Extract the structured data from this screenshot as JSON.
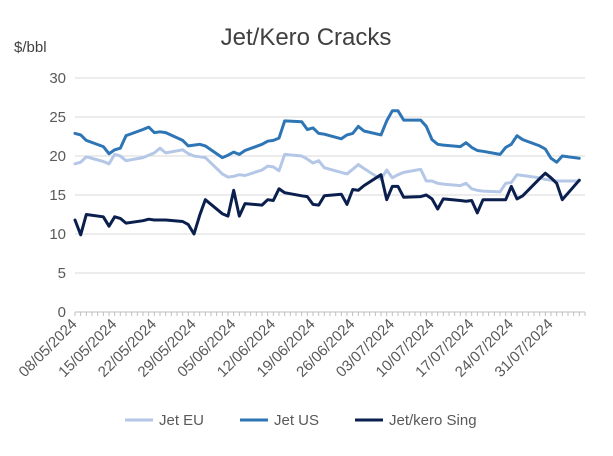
{
  "chart_data": {
    "type": "line",
    "title": "Jet/Kero Cracks",
    "ylabel": "$/bbl",
    "xlabel": "",
    "ylim": [
      0,
      30
    ],
    "yticks": [
      0,
      5,
      10,
      15,
      20,
      25,
      30
    ],
    "grid": true,
    "legend": "bottom",
    "xlim": [
      "2024-05-08",
      "2024-08-06"
    ],
    "x_tick_labels": [
      "08/05/2024",
      "15/05/2024",
      "22/05/2024",
      "29/05/2024",
      "05/06/2024",
      "12/06/2024",
      "19/06/2024",
      "26/06/2024",
      "03/07/2024",
      "10/07/2024",
      "17/07/2024",
      "24/07/2024",
      "31/07/2024"
    ],
    "x_tick_dates": [
      "2024-05-08",
      "2024-05-15",
      "2024-05-22",
      "2024-05-29",
      "2024-06-05",
      "2024-06-12",
      "2024-06-19",
      "2024-06-26",
      "2024-07-03",
      "2024-07-10",
      "2024-07-17",
      "2024-07-24",
      "2024-07-31"
    ],
    "series": [
      {
        "name": "Jet EU",
        "color": "#b4c7e7",
        "points": [
          [
            "2024-05-08",
            19.0
          ],
          [
            "2024-05-09",
            19.2
          ],
          [
            "2024-05-10",
            19.9
          ],
          [
            "2024-05-13",
            19.3
          ],
          [
            "2024-05-14",
            19.0
          ],
          [
            "2024-05-15",
            20.2
          ],
          [
            "2024-05-16",
            20.0
          ],
          [
            "2024-05-17",
            19.4
          ],
          [
            "2024-05-20",
            19.8
          ],
          [
            "2024-05-21",
            20.1
          ],
          [
            "2024-05-22",
            20.4
          ],
          [
            "2024-05-23",
            21.0
          ],
          [
            "2024-05-24",
            20.4
          ],
          [
            "2024-05-27",
            20.8
          ],
          [
            "2024-05-28",
            20.3
          ],
          [
            "2024-05-29",
            20.0
          ],
          [
            "2024-05-30",
            19.9
          ],
          [
            "2024-05-31",
            19.8
          ],
          [
            "2024-06-03",
            17.7
          ],
          [
            "2024-06-04",
            17.3
          ],
          [
            "2024-06-05",
            17.4
          ],
          [
            "2024-06-06",
            17.6
          ],
          [
            "2024-06-07",
            17.5
          ],
          [
            "2024-06-10",
            18.2
          ],
          [
            "2024-06-11",
            18.7
          ],
          [
            "2024-06-12",
            18.6
          ],
          [
            "2024-06-13",
            18.1
          ],
          [
            "2024-06-14",
            20.2
          ],
          [
            "2024-06-17",
            20.0
          ],
          [
            "2024-06-18",
            19.6
          ],
          [
            "2024-06-19",
            19.1
          ],
          [
            "2024-06-20",
            19.4
          ],
          [
            "2024-06-21",
            18.5
          ],
          [
            "2024-06-24",
            17.9
          ],
          [
            "2024-06-25",
            17.7
          ],
          [
            "2024-06-26",
            18.3
          ],
          [
            "2024-06-27",
            18.9
          ],
          [
            "2024-06-28",
            18.4
          ],
          [
            "2024-07-01",
            17.0
          ],
          [
            "2024-07-02",
            18.2
          ],
          [
            "2024-07-03",
            17.2
          ],
          [
            "2024-07-04",
            17.6
          ],
          [
            "2024-07-05",
            17.9
          ],
          [
            "2024-07-08",
            18.3
          ],
          [
            "2024-07-09",
            16.8
          ],
          [
            "2024-07-10",
            16.8
          ],
          [
            "2024-07-11",
            16.5
          ],
          [
            "2024-07-12",
            16.4
          ],
          [
            "2024-07-15",
            16.2
          ],
          [
            "2024-07-16",
            16.5
          ],
          [
            "2024-07-17",
            15.8
          ],
          [
            "2024-07-18",
            15.6
          ],
          [
            "2024-07-19",
            15.5
          ],
          [
            "2024-07-22",
            15.4
          ],
          [
            "2024-07-23",
            16.5
          ],
          [
            "2024-07-24",
            16.6
          ],
          [
            "2024-07-25",
            17.6
          ],
          [
            "2024-07-26",
            17.5
          ],
          [
            "2024-07-29",
            17.2
          ],
          [
            "2024-07-30",
            17.0
          ],
          [
            "2024-07-31",
            16.9
          ],
          [
            "2024-08-01",
            16.8
          ],
          [
            "2024-08-02",
            16.8
          ],
          [
            "2024-08-05",
            16.8
          ]
        ]
      },
      {
        "name": "Jet US",
        "color": "#2e75b6",
        "points": [
          [
            "2024-05-08",
            22.9
          ],
          [
            "2024-05-09",
            22.7
          ],
          [
            "2024-05-10",
            22.0
          ],
          [
            "2024-05-13",
            21.2
          ],
          [
            "2024-05-14",
            20.3
          ],
          [
            "2024-05-15",
            20.8
          ],
          [
            "2024-05-16",
            21.0
          ],
          [
            "2024-05-17",
            22.6
          ],
          [
            "2024-05-20",
            23.4
          ],
          [
            "2024-05-21",
            23.7
          ],
          [
            "2024-05-22",
            23.0
          ],
          [
            "2024-05-23",
            23.1
          ],
          [
            "2024-05-24",
            23.0
          ],
          [
            "2024-05-27",
            22.0
          ],
          [
            "2024-05-28",
            21.3
          ],
          [
            "2024-05-29",
            21.4
          ],
          [
            "2024-05-30",
            21.5
          ],
          [
            "2024-05-31",
            21.3
          ],
          [
            "2024-06-03",
            19.8
          ],
          [
            "2024-06-04",
            20.1
          ],
          [
            "2024-06-05",
            20.5
          ],
          [
            "2024-06-06",
            20.2
          ],
          [
            "2024-06-07",
            20.7
          ],
          [
            "2024-06-10",
            21.5
          ],
          [
            "2024-06-11",
            21.9
          ],
          [
            "2024-06-12",
            22.0
          ],
          [
            "2024-06-13",
            22.3
          ],
          [
            "2024-06-14",
            24.5
          ],
          [
            "2024-06-17",
            24.4
          ],
          [
            "2024-06-18",
            23.4
          ],
          [
            "2024-06-19",
            23.6
          ],
          [
            "2024-06-20",
            22.9
          ],
          [
            "2024-06-21",
            22.8
          ],
          [
            "2024-06-24",
            22.2
          ],
          [
            "2024-06-25",
            22.7
          ],
          [
            "2024-06-26",
            22.9
          ],
          [
            "2024-06-27",
            23.8
          ],
          [
            "2024-06-28",
            23.2
          ],
          [
            "2024-07-01",
            22.7
          ],
          [
            "2024-07-02",
            24.5
          ],
          [
            "2024-07-03",
            25.8
          ],
          [
            "2024-07-04",
            25.8
          ],
          [
            "2024-07-05",
            24.6
          ],
          [
            "2024-07-08",
            24.6
          ],
          [
            "2024-07-09",
            23.8
          ],
          [
            "2024-07-10",
            22.1
          ],
          [
            "2024-07-11",
            21.5
          ],
          [
            "2024-07-12",
            21.4
          ],
          [
            "2024-07-15",
            21.2
          ],
          [
            "2024-07-16",
            21.7
          ],
          [
            "2024-07-17",
            21.1
          ],
          [
            "2024-07-18",
            20.7
          ],
          [
            "2024-07-19",
            20.6
          ],
          [
            "2024-07-22",
            20.2
          ],
          [
            "2024-07-23",
            21.1
          ],
          [
            "2024-07-24",
            21.5
          ],
          [
            "2024-07-25",
            22.6
          ],
          [
            "2024-07-26",
            22.1
          ],
          [
            "2024-07-29",
            21.3
          ],
          [
            "2024-07-30",
            20.9
          ],
          [
            "2024-07-31",
            19.7
          ],
          [
            "2024-08-01",
            19.2
          ],
          [
            "2024-08-02",
            20.0
          ],
          [
            "2024-08-05",
            19.7
          ]
        ]
      },
      {
        "name": "Jet/kero Sing",
        "color": "#0b1f4e",
        "points": [
          [
            "2024-05-08",
            11.8
          ],
          [
            "2024-05-09",
            9.9
          ],
          [
            "2024-05-10",
            12.5
          ],
          [
            "2024-05-13",
            12.2
          ],
          [
            "2024-05-14",
            11.0
          ],
          [
            "2024-05-15",
            12.2
          ],
          [
            "2024-05-16",
            12.0
          ],
          [
            "2024-05-17",
            11.4
          ],
          [
            "2024-05-20",
            11.7
          ],
          [
            "2024-05-21",
            11.9
          ],
          [
            "2024-05-22",
            11.8
          ],
          [
            "2024-05-23",
            11.8
          ],
          [
            "2024-05-24",
            11.8
          ],
          [
            "2024-05-27",
            11.6
          ],
          [
            "2024-05-28",
            11.2
          ],
          [
            "2024-05-29",
            10.0
          ],
          [
            "2024-05-30",
            12.4
          ],
          [
            "2024-05-31",
            14.4
          ],
          [
            "2024-06-03",
            12.6
          ],
          [
            "2024-06-04",
            12.3
          ],
          [
            "2024-06-05",
            15.6
          ],
          [
            "2024-06-06",
            12.3
          ],
          [
            "2024-06-07",
            13.9
          ],
          [
            "2024-06-10",
            13.7
          ],
          [
            "2024-06-11",
            14.4
          ],
          [
            "2024-06-12",
            14.3
          ],
          [
            "2024-06-13",
            15.8
          ],
          [
            "2024-06-14",
            15.3
          ],
          [
            "2024-06-17",
            14.9
          ],
          [
            "2024-06-18",
            14.8
          ],
          [
            "2024-06-19",
            13.8
          ],
          [
            "2024-06-20",
            13.7
          ],
          [
            "2024-06-21",
            14.9
          ],
          [
            "2024-06-24",
            15.1
          ],
          [
            "2024-06-25",
            13.8
          ],
          [
            "2024-06-26",
            15.7
          ],
          [
            "2024-06-27",
            15.6
          ],
          [
            "2024-06-28",
            16.2
          ],
          [
            "2024-07-01",
            17.6
          ],
          [
            "2024-07-02",
            14.4
          ],
          [
            "2024-07-03",
            16.1
          ],
          [
            "2024-07-04",
            16.1
          ],
          [
            "2024-07-05",
            14.7
          ],
          [
            "2024-07-08",
            14.8
          ],
          [
            "2024-07-09",
            15.0
          ],
          [
            "2024-07-10",
            14.5
          ],
          [
            "2024-07-11",
            13.2
          ],
          [
            "2024-07-12",
            14.5
          ],
          [
            "2024-07-15",
            14.3
          ],
          [
            "2024-07-16",
            14.2
          ],
          [
            "2024-07-17",
            14.3
          ],
          [
            "2024-07-18",
            12.7
          ],
          [
            "2024-07-19",
            14.4
          ],
          [
            "2024-07-22",
            14.4
          ],
          [
            "2024-07-23",
            14.4
          ],
          [
            "2024-07-24",
            16.1
          ],
          [
            "2024-07-25",
            14.5
          ],
          [
            "2024-07-26",
            14.9
          ],
          [
            "2024-07-29",
            17.1
          ],
          [
            "2024-07-30",
            17.8
          ],
          [
            "2024-07-31",
            17.2
          ],
          [
            "2024-08-01",
            16.5
          ],
          [
            "2024-08-02",
            14.4
          ],
          [
            "2024-08-05",
            16.9
          ]
        ]
      }
    ]
  }
}
